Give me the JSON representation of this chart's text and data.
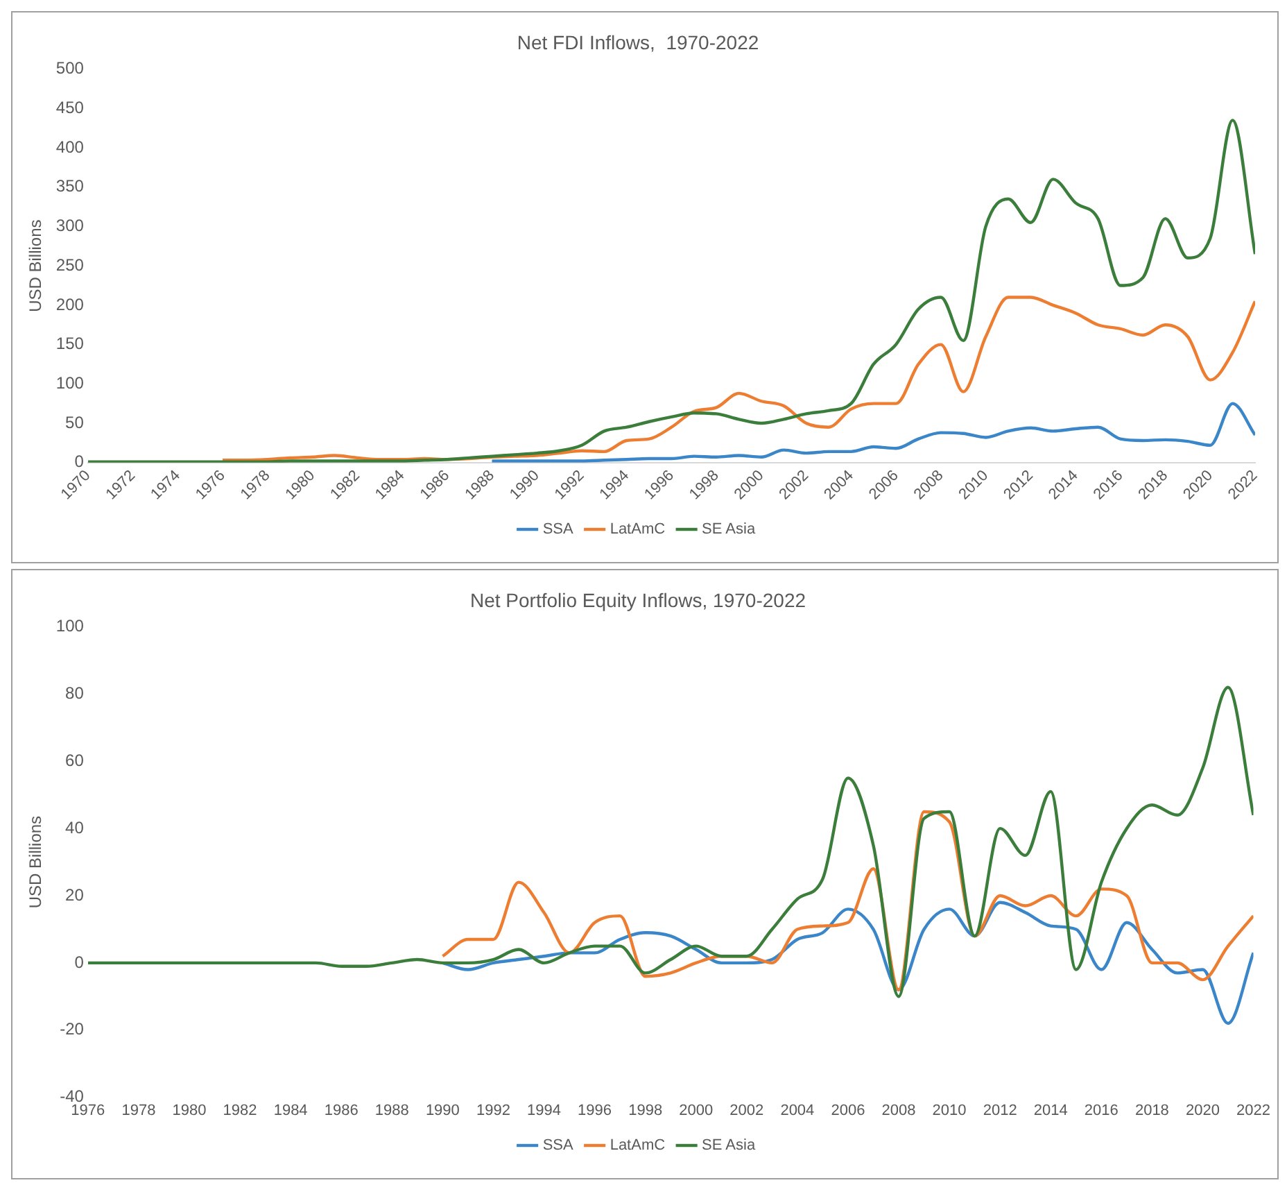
{
  "chart_data": [
    {
      "type": "line",
      "title": "Net FDI Inflows,  1970-2022",
      "ylabel": "USD Billions",
      "legend": "bottom",
      "marker": "none",
      "grid": false,
      "x": [
        1970,
        1971,
        1972,
        1973,
        1974,
        1975,
        1976,
        1977,
        1978,
        1979,
        1980,
        1981,
        1982,
        1983,
        1984,
        1985,
        1986,
        1987,
        1988,
        1989,
        1990,
        1991,
        1992,
        1993,
        1994,
        1995,
        1996,
        1997,
        1998,
        1999,
        2000,
        2001,
        2002,
        2003,
        2004,
        2005,
        2006,
        2007,
        2008,
        2009,
        2010,
        2011,
        2012,
        2013,
        2014,
        2015,
        2016,
        2017,
        2018,
        2019,
        2020,
        2021,
        2022
      ],
      "xlim": [
        1970,
        2022
      ],
      "xticks": [
        1970,
        1972,
        1974,
        1976,
        1978,
        1980,
        1982,
        1984,
        1986,
        1988,
        1990,
        1992,
        1994,
        1996,
        1998,
        2000,
        2002,
        2004,
        2006,
        2008,
        2010,
        2012,
        2014,
        2016,
        2018,
        2020,
        2022
      ],
      "ylim": [
        0,
        500
      ],
      "yticks": [
        0,
        50,
        100,
        150,
        200,
        250,
        300,
        350,
        400,
        450,
        500
      ],
      "series": [
        {
          "name": "SSA",
          "color": "#3a86c8",
          "values": [
            null,
            null,
            null,
            null,
            null,
            null,
            null,
            null,
            null,
            null,
            null,
            null,
            null,
            null,
            null,
            null,
            null,
            null,
            2,
            2,
            2,
            2,
            2,
            3,
            4,
            5,
            5,
            8,
            7,
            9,
            7,
            16,
            12,
            14,
            14,
            20,
            18,
            30,
            38,
            37,
            32,
            40,
            44,
            40,
            43,
            45,
            30,
            28,
            29,
            27,
            22,
            75,
            35
          ]
        },
        {
          "name": "LatAmC",
          "color": "#ed7d31",
          "values": [
            null,
            null,
            null,
            null,
            null,
            null,
            3,
            3,
            4,
            6,
            7,
            9,
            6,
            4,
            4,
            5,
            4,
            5,
            7,
            8,
            9,
            12,
            15,
            14,
            28,
            30,
            45,
            65,
            70,
            88,
            78,
            72,
            50,
            45,
            68,
            75,
            75,
            125,
            150,
            90,
            160,
            210,
            210,
            200,
            190,
            175,
            170,
            162,
            175,
            160,
            105,
            140,
            205
          ]
        },
        {
          "name": "SE Asia",
          "color": "#3b7d3b",
          "values": [
            1,
            1,
            1,
            1,
            1,
            1,
            1,
            1,
            1,
            2,
            2,
            2,
            2,
            2,
            2,
            3,
            4,
            6,
            8,
            10,
            12,
            15,
            22,
            40,
            45,
            52,
            58,
            63,
            62,
            55,
            50,
            55,
            62,
            66,
            75,
            125,
            150,
            195,
            210,
            155,
            300,
            335,
            305,
            360,
            330,
            310,
            225,
            235,
            310,
            260,
            285,
            435,
            265
          ]
        }
      ]
    },
    {
      "type": "line",
      "title": "Net Portfolio Equity Inflows, 1970-2022",
      "ylabel": "USD Billions",
      "legend": "bottom",
      "marker": "none",
      "grid": false,
      "x": [
        1976,
        1977,
        1978,
        1979,
        1980,
        1981,
        1982,
        1983,
        1984,
        1985,
        1986,
        1987,
        1988,
        1989,
        1990,
        1991,
        1992,
        1993,
        1994,
        1995,
        1996,
        1997,
        1998,
        1999,
        2000,
        2001,
        2002,
        2003,
        2004,
        2005,
        2006,
        2007,
        2008,
        2009,
        2010,
        2011,
        2012,
        2013,
        2014,
        2015,
        2016,
        2017,
        2018,
        2019,
        2020,
        2021,
        2022
      ],
      "xlim": [
        1976,
        2022
      ],
      "xticks": [
        1976,
        1978,
        1980,
        1982,
        1984,
        1986,
        1988,
        1990,
        1992,
        1994,
        1996,
        1998,
        2000,
        2002,
        2004,
        2006,
        2008,
        2010,
        2012,
        2014,
        2016,
        2018,
        2020,
        2022
      ],
      "ylim": [
        -40,
        100
      ],
      "yticks": [
        -40,
        -20,
        0,
        20,
        40,
        60,
        80,
        100
      ],
      "series": [
        {
          "name": "SSA",
          "color": "#3a86c8",
          "values": [
            null,
            null,
            null,
            null,
            null,
            null,
            null,
            null,
            null,
            null,
            null,
            null,
            null,
            null,
            0,
            -2,
            0,
            1,
            2,
            3,
            3,
            7,
            9,
            8,
            4,
            0,
            0,
            1,
            7,
            9,
            16,
            10,
            -8,
            10,
            16,
            8,
            18,
            15,
            11,
            10,
            -2,
            12,
            4,
            -3,
            -2,
            -18,
            3
          ]
        },
        {
          "name": "LatAmC",
          "color": "#ed7d31",
          "values": [
            null,
            null,
            null,
            null,
            null,
            null,
            null,
            null,
            null,
            null,
            null,
            null,
            null,
            null,
            2,
            7,
            7,
            24,
            15,
            3,
            12,
            14,
            -4,
            -3,
            0,
            2,
            2,
            0,
            10,
            11,
            12,
            28,
            -8,
            45,
            42,
            8,
            20,
            17,
            20,
            14,
            22,
            20,
            0,
            0,
            -5,
            5,
            14
          ]
        },
        {
          "name": "SE Asia",
          "color": "#3b7d3b",
          "values": [
            0,
            0,
            0,
            0,
            0,
            0,
            0,
            0,
            0,
            0,
            -1,
            -1,
            0,
            1,
            0,
            0,
            1,
            4,
            0,
            3,
            5,
            5,
            -3,
            1,
            5,
            2,
            2,
            10,
            19,
            25,
            55,
            35,
            -10,
            43,
            45,
            8,
            40,
            32,
            51,
            -2,
            24,
            40,
            47,
            44,
            58,
            82,
            44
          ]
        }
      ]
    }
  ]
}
